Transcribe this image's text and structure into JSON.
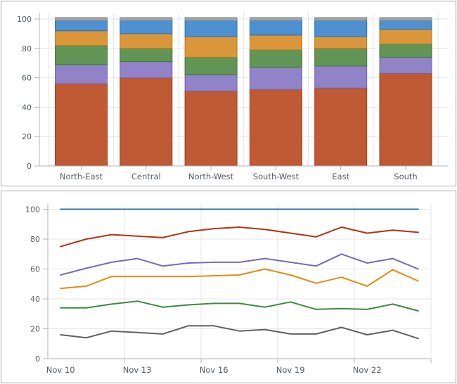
{
  "page": {
    "background": "#ffffff"
  },
  "axis_style": {
    "label_color": "#545c63",
    "grid_color": "#e4e4e4",
    "axis_color": "#b3b3b3",
    "y_tick_labels": [
      "0",
      "20",
      "40",
      "60",
      "80",
      "100"
    ]
  },
  "chart_data": [
    {
      "id": "stacked-bar-chart",
      "type": "bar",
      "stacked": true,
      "title": "",
      "xlabel": "",
      "ylabel": "",
      "ylim": [
        0,
        100
      ],
      "y_ticks": [
        0,
        20,
        40,
        60,
        80,
        100
      ],
      "grid": true,
      "legend": "none",
      "categories": [
        "North-East",
        "Central",
        "North-West",
        "South-West",
        "East",
        "South"
      ],
      "series": [
        {
          "name": "rust",
          "fill": "#bf5a35",
          "stroke": "#9e3c16",
          "values": [
            56,
            60,
            51,
            52,
            53,
            63
          ]
        },
        {
          "name": "purple",
          "fill": "#9183c8",
          "stroke": "#7265b2",
          "values": [
            13,
            11,
            11,
            15,
            15,
            11
          ]
        },
        {
          "name": "green",
          "fill": "#629555",
          "stroke": "#427437",
          "values": [
            13,
            9,
            12,
            12,
            12,
            9
          ]
        },
        {
          "name": "orange",
          "fill": "#d9963b",
          "stroke": "#bb7a1a",
          "values": [
            10,
            10,
            14,
            10,
            8,
            10
          ]
        },
        {
          "name": "blue",
          "fill": "#4e91d2",
          "stroke": "#2a70b5",
          "values": [
            7,
            9,
            11,
            10,
            11,
            6
          ]
        },
        {
          "name": "gray",
          "fill": "#a3a3a3",
          "stroke": "#8b8b8b",
          "values": [
            2,
            2,
            2,
            2,
            2,
            2
          ]
        }
      ]
    },
    {
      "id": "line-chart",
      "type": "line",
      "title": "",
      "xlabel": "",
      "ylabel": "",
      "ylim": [
        0,
        100
      ],
      "y_ticks": [
        0,
        20,
        40,
        60,
        80,
        100
      ],
      "grid": true,
      "legend": "none",
      "x": [
        "Nov 10",
        "Nov 11",
        "Nov 12",
        "Nov 13",
        "Nov 14",
        "Nov 15",
        "Nov 16",
        "Nov 17",
        "Nov 18",
        "Nov 19",
        "Nov 20",
        "Nov 21",
        "Nov 22",
        "Nov 23",
        "Nov 24"
      ],
      "x_tick_labels": [
        "Nov 10",
        "Nov 13",
        "Nov 16",
        "Nov 19",
        "Nov 22"
      ],
      "x_tick_every": 3,
      "series": [
        {
          "name": "blue",
          "color": "#2e74a3",
          "values": [
            100,
            100,
            100,
            100,
            100,
            100,
            100,
            100,
            100,
            100,
            100,
            100,
            100,
            100,
            100
          ]
        },
        {
          "name": "red",
          "color": "#b23311",
          "values": [
            75,
            80,
            83,
            82,
            81,
            85,
            87,
            88,
            86.5,
            84,
            81.5,
            88,
            84,
            86,
            84.5
          ]
        },
        {
          "name": "purple",
          "color": "#7668c0",
          "values": [
            56,
            60.5,
            64.5,
            67,
            62,
            64,
            64.5,
            64.5,
            67,
            64.5,
            62,
            70,
            64,
            67,
            60
          ]
        },
        {
          "name": "orange",
          "color": "#e68a10",
          "values": [
            47,
            48.5,
            55,
            55,
            55,
            55,
            55.5,
            56,
            60,
            56,
            50.5,
            54.5,
            48.5,
            59.5,
            52
          ]
        },
        {
          "name": "green",
          "color": "#3d8a3b",
          "values": [
            34,
            34,
            36.5,
            38.5,
            34.5,
            36,
            37,
            37,
            34.5,
            38,
            33,
            33.5,
            33,
            36.5,
            32
          ]
        },
        {
          "name": "gray",
          "color": "#606060",
          "values": [
            16,
            14,
            18.5,
            17.5,
            16.5,
            22,
            22,
            18.5,
            19.5,
            16.5,
            16.5,
            21,
            16,
            19,
            13.5
          ]
        }
      ]
    }
  ]
}
